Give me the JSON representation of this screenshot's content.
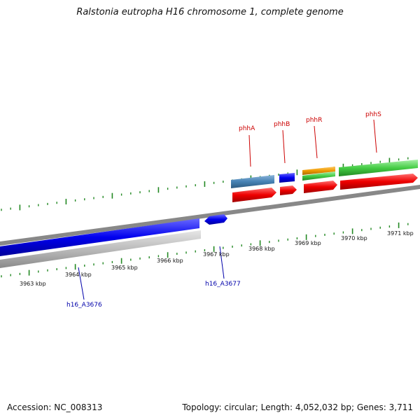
{
  "title": "Ralstonia eutropha H16 chromosome 1, complete genome",
  "footer": {
    "accession": "Accession: NC_008313",
    "topology": "Topology: circular; Length: 4,052,032 bp; Genes: 3,711"
  },
  "colors": {
    "blue": "#0000ee",
    "red": "#ee0000",
    "green": "#44cc44",
    "orange": "#ee9900",
    "steelblue": "#4682b4",
    "gray": "#bbbbbb",
    "backbone": "#888888",
    "tick": "#228822",
    "upper_label": "#cc0000",
    "lower_label": "#0000aa"
  },
  "scale": {
    "unit": "kbp",
    "labels": [
      "3963 kbp",
      "3964 kbp",
      "3965 kbp",
      "3966 kbp",
      "3967 kbp",
      "3968 kbp",
      "3969 kbp",
      "3970 kbp",
      "3971 kbp"
    ]
  },
  "upper_labels": [
    "phhA",
    "phhB",
    "phhR",
    "phhS"
  ],
  "lower_labels": [
    "h16_A3676",
    "h16_A3677"
  ]
}
